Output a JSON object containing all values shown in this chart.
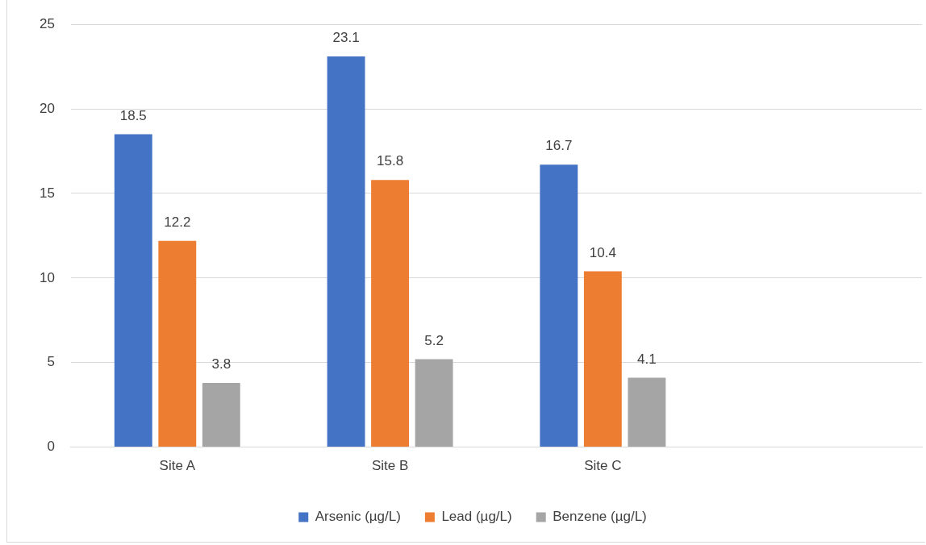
{
  "chart_data": {
    "type": "bar",
    "categories": [
      "Site A",
      "Site B",
      "Site C",
      null
    ],
    "series": [
      {
        "name": "Arsenic (µg/L)",
        "color": "#4472c4",
        "values": [
          18.5,
          23.1,
          16.7,
          null
        ]
      },
      {
        "name": "Lead (µg/L)",
        "color": "#ed7d31",
        "values": [
          12.2,
          15.8,
          10.4,
          null
        ]
      },
      {
        "name": "Benzene (µg/L)",
        "color": "#a5a5a5",
        "values": [
          3.8,
          5.2,
          4.1,
          null
        ]
      }
    ],
    "ylim": [
      0,
      25
    ],
    "yticks": [
      0,
      5,
      10,
      15,
      20,
      25
    ],
    "grid": "y",
    "legend": "bottom",
    "data_labels": true
  }
}
